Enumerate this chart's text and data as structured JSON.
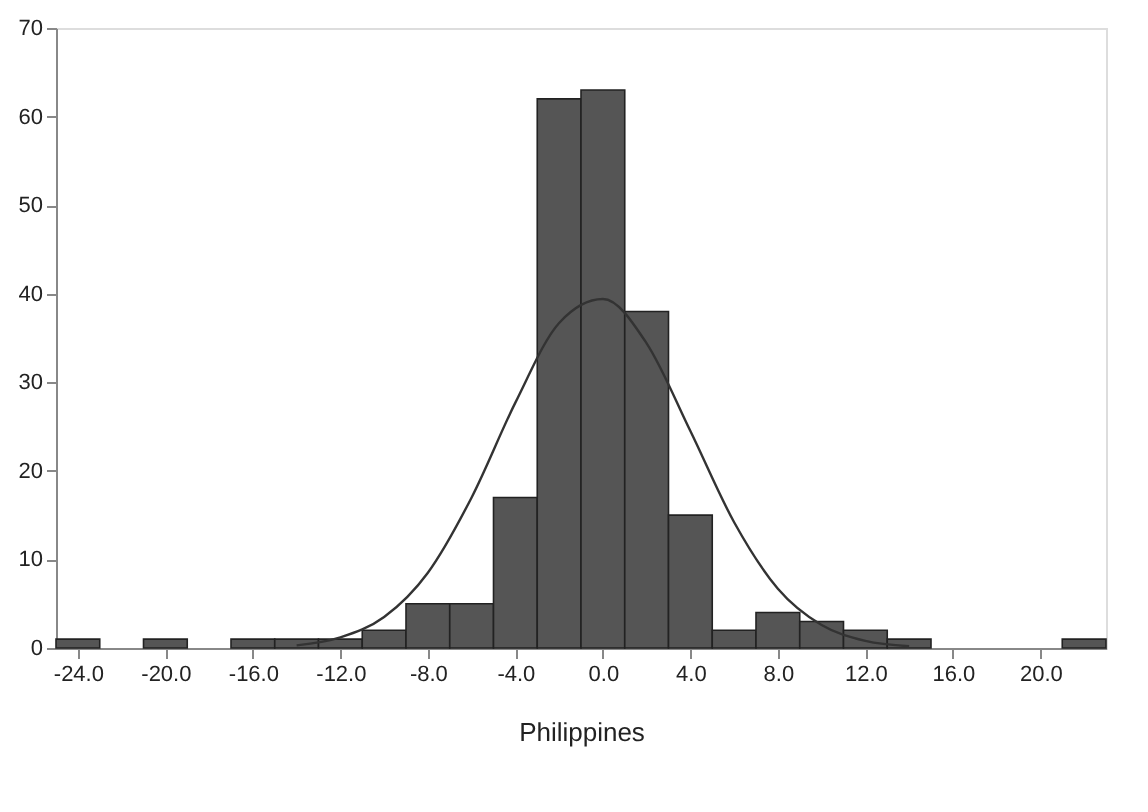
{
  "chart_data": {
    "type": "histogram",
    "xlabel": "Philippines",
    "bins": [
      -25,
      -23,
      -21,
      -19,
      -17,
      -15,
      -13,
      -11,
      -9,
      -7,
      -5,
      -3,
      -1,
      1,
      3,
      5,
      7,
      9,
      11,
      13,
      15,
      17,
      19,
      21,
      23
    ],
    "values": [
      1,
      0,
      1,
      0,
      1,
      1,
      1,
      2,
      5,
      5,
      17,
      62,
      63,
      38,
      15,
      2,
      4,
      3,
      2,
      1,
      0,
      0,
      0,
      1
    ],
    "color": "#555555",
    "series": [
      {
        "type": "line",
        "color": "#333333",
        "x": [
          -14,
          -12,
          -10,
          -8,
          -6,
          -4,
          -2,
          0,
          2,
          4,
          6,
          8,
          10,
          12,
          14
        ],
        "values": [
          0.3,
          1.2,
          3.5,
          8.5,
          17,
          27.7,
          36.7,
          39.4,
          34.4,
          24.5,
          14.2,
          6.7,
          2.6,
          0.8,
          0.2
        ]
      }
    ],
    "xlim": [
      -25,
      23
    ],
    "xticks": [
      {
        "value": -24,
        "label": "-24.0"
      },
      {
        "value": -20,
        "label": "-20.0"
      },
      {
        "value": -16,
        "label": "-16.0"
      },
      {
        "value": -12,
        "label": "-12.0"
      },
      {
        "value": -8,
        "label": "-8.0"
      },
      {
        "value": -4,
        "label": "-4.0"
      },
      {
        "value": 0,
        "label": "0.0"
      },
      {
        "value": 4,
        "label": "4.0"
      },
      {
        "value": 8,
        "label": "8.0"
      },
      {
        "value": 12,
        "label": "12.0"
      },
      {
        "value": 16,
        "label": "16.0"
      },
      {
        "value": 20,
        "label": "20.0"
      }
    ],
    "ylim": [
      0,
      70
    ],
    "yticks": [
      0,
      10,
      20,
      30,
      40,
      50,
      60,
      70
    ]
  }
}
